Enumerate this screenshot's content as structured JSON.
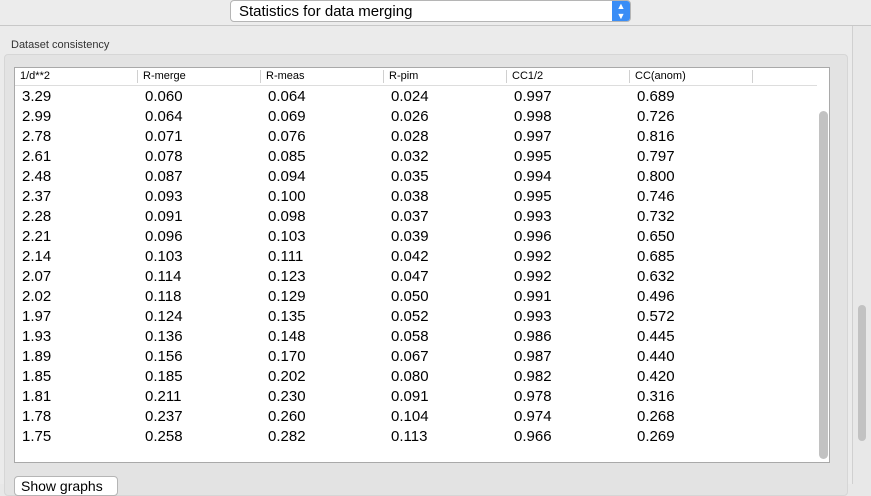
{
  "selector": {
    "value": "Statistics for data merging"
  },
  "group": {
    "label": "Dataset consistency"
  },
  "table": {
    "columns": [
      "1/d**2",
      "R-merge",
      "R-meas",
      "R-pim",
      "CC1/2",
      "CC(anom)"
    ],
    "rows": [
      [
        "3.29",
        "0.060",
        "0.064",
        "0.024",
        "0.997",
        "0.689"
      ],
      [
        "2.99",
        "0.064",
        "0.069",
        "0.026",
        "0.998",
        "0.726"
      ],
      [
        "2.78",
        "0.071",
        "0.076",
        "0.028",
        "0.997",
        "0.816"
      ],
      [
        "2.61",
        "0.078",
        "0.085",
        "0.032",
        "0.995",
        "0.797"
      ],
      [
        "2.48",
        "0.087",
        "0.094",
        "0.035",
        "0.994",
        "0.800"
      ],
      [
        "2.37",
        "0.093",
        "0.100",
        "0.038",
        "0.995",
        "0.746"
      ],
      [
        "2.28",
        "0.091",
        "0.098",
        "0.037",
        "0.993",
        "0.732"
      ],
      [
        "2.21",
        "0.096",
        "0.103",
        "0.039",
        "0.996",
        "0.650"
      ],
      [
        "2.14",
        "0.103",
        "0.111",
        "0.042",
        "0.992",
        "0.685"
      ],
      [
        "2.07",
        "0.114",
        "0.123",
        "0.047",
        "0.992",
        "0.632"
      ],
      [
        "2.02",
        "0.118",
        "0.129",
        "0.050",
        "0.991",
        "0.496"
      ],
      [
        "1.97",
        "0.124",
        "0.135",
        "0.052",
        "0.993",
        "0.572"
      ],
      [
        "1.93",
        "0.136",
        "0.148",
        "0.058",
        "0.986",
        "0.445"
      ],
      [
        "1.89",
        "0.156",
        "0.170",
        "0.067",
        "0.987",
        "0.440"
      ],
      [
        "1.85",
        "0.185",
        "0.202",
        "0.080",
        "0.982",
        "0.420"
      ],
      [
        "1.81",
        "0.211",
        "0.230",
        "0.091",
        "0.978",
        "0.316"
      ],
      [
        "1.78",
        "0.237",
        "0.260",
        "0.104",
        "0.974",
        "0.268"
      ],
      [
        "1.75",
        "0.258",
        "0.282",
        "0.113",
        "0.966",
        "0.269"
      ]
    ]
  },
  "buttons": {
    "show_graphs": "Show graphs"
  }
}
